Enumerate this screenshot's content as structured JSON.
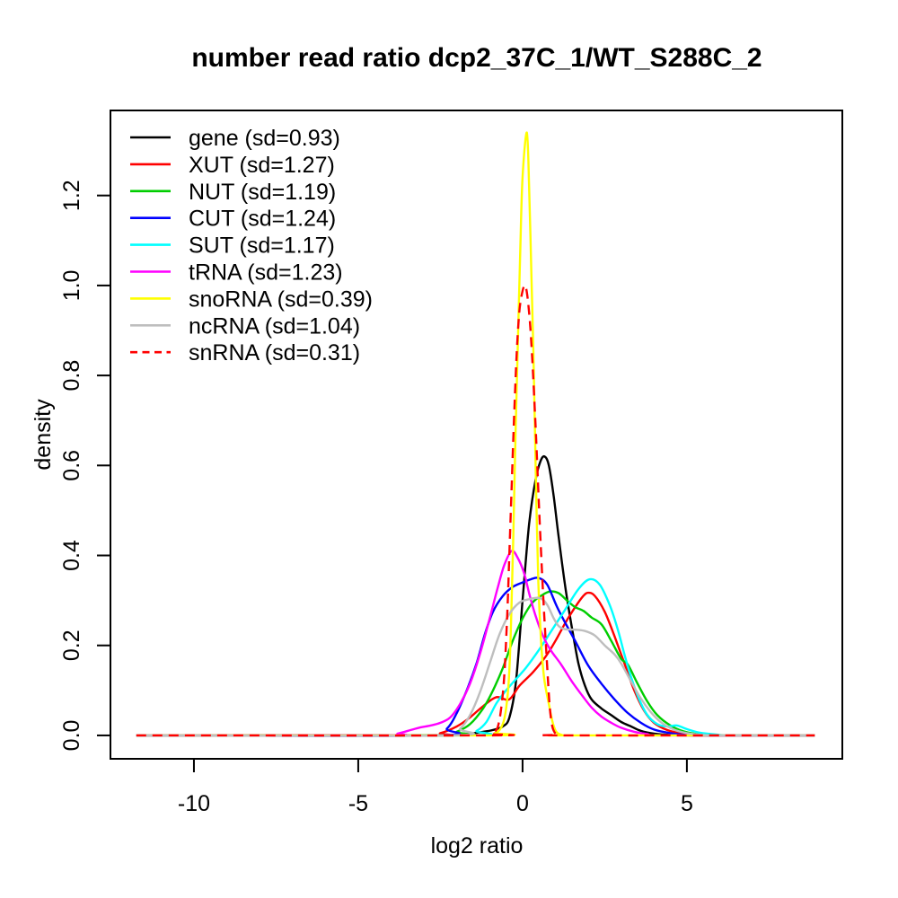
{
  "figure": {
    "title": "number read ratio dcp2_37C_1/WT_S288C_2",
    "xlabel": "log2 ratio",
    "ylabel": "density"
  },
  "chart_data": {
    "type": "line",
    "title": "number read ratio dcp2_37C_1/WT_S288C_2",
    "xlabel": "log2 ratio",
    "ylabel": "density",
    "xlim": [
      -12.54,
      9.73
    ],
    "ylim": [
      -0.052,
      1.389
    ],
    "x_ticks": [
      -10,
      -5,
      0,
      5
    ],
    "x_tick_labels": [
      "-10",
      "-5",
      "0",
      "5"
    ],
    "y_ticks": [
      0,
      0.2,
      0.4,
      0.6,
      0.8,
      1.0,
      1.2
    ],
    "y_tick_labels": [
      "0.0",
      "0.2",
      "0.4",
      "0.6",
      "0.8",
      "1.0",
      "1.2"
    ],
    "grid": false,
    "legend_position": "top-left",
    "series": [
      {
        "name": "gene",
        "label": "gene (sd=0.93)",
        "sd": 0.93,
        "color": "#000000",
        "dash": false,
        "points": [
          [
            -11.75,
            0
          ],
          [
            -2.5,
            0
          ],
          [
            -2,
            0.002
          ],
          [
            -1.6,
            0.004
          ],
          [
            -1.2,
            0.008
          ],
          [
            -0.9,
            0.012
          ],
          [
            -0.6,
            0.02
          ],
          [
            -0.4,
            0.04
          ],
          [
            -0.2,
            0.12
          ],
          [
            0,
            0.3
          ],
          [
            0.2,
            0.47
          ],
          [
            0.4,
            0.57
          ],
          [
            0.55,
            0.61
          ],
          [
            0.67,
            0.62
          ],
          [
            0.8,
            0.6
          ],
          [
            0.95,
            0.53
          ],
          [
            1.1,
            0.44
          ],
          [
            1.3,
            0.33
          ],
          [
            1.5,
            0.24
          ],
          [
            1.7,
            0.16
          ],
          [
            1.9,
            0.11
          ],
          [
            2.1,
            0.08
          ],
          [
            2.4,
            0.06
          ],
          [
            2.7,
            0.045
          ],
          [
            3,
            0.03
          ],
          [
            3.3,
            0.02
          ],
          [
            3.6,
            0.01
          ],
          [
            4,
            0.004
          ],
          [
            4.5,
            0.001
          ],
          [
            5,
            0
          ],
          [
            8.89,
            0
          ]
        ]
      },
      {
        "name": "XUT",
        "label": "XUT (sd=1.27)",
        "sd": 1.27,
        "color": "#ff0000",
        "dash": false,
        "points": [
          [
            -11.75,
            0
          ],
          [
            -3,
            0
          ],
          [
            -2.5,
            0.005
          ],
          [
            -2,
            0.02
          ],
          [
            -1.6,
            0.04
          ],
          [
            -1.2,
            0.065
          ],
          [
            -0.8,
            0.085
          ],
          [
            -0.41,
            0.08
          ],
          [
            -0.1,
            0.11
          ],
          [
            0.31,
            0.14
          ],
          [
            0.7,
            0.175
          ],
          [
            1,
            0.21
          ],
          [
            1.3,
            0.25
          ],
          [
            1.6,
            0.285
          ],
          [
            1.85,
            0.31
          ],
          [
            2,
            0.317
          ],
          [
            2.2,
            0.31
          ],
          [
            2.5,
            0.275
          ],
          [
            2.8,
            0.22
          ],
          [
            3.1,
            0.16
          ],
          [
            3.4,
            0.1
          ],
          [
            3.7,
            0.055
          ],
          [
            4,
            0.028
          ],
          [
            4.4,
            0.012
          ],
          [
            4.8,
            0.005
          ],
          [
            5.3,
            0.001
          ],
          [
            5.8,
            0
          ],
          [
            8.89,
            0
          ]
        ]
      },
      {
        "name": "NUT",
        "label": "NUT (sd=1.19)",
        "sd": 1.19,
        "color": "#00cd00",
        "dash": false,
        "points": [
          [
            -11.75,
            0
          ],
          [
            -2.4,
            0
          ],
          [
            -2,
            0.008
          ],
          [
            -1.6,
            0.025
          ],
          [
            -1.2,
            0.06
          ],
          [
            -0.9,
            0.1
          ],
          [
            -0.6,
            0.15
          ],
          [
            -0.3,
            0.21
          ],
          [
            0,
            0.26
          ],
          [
            0.3,
            0.295
          ],
          [
            0.6,
            0.312
          ],
          [
            0.85,
            0.32
          ],
          [
            1.1,
            0.316
          ],
          [
            1.35,
            0.3
          ],
          [
            1.6,
            0.285
          ],
          [
            1.85,
            0.277
          ],
          [
            2.1,
            0.262
          ],
          [
            2.4,
            0.247
          ],
          [
            2.7,
            0.21
          ],
          [
            3,
            0.17
          ],
          [
            3.2,
            0.158
          ],
          [
            3.5,
            0.115
          ],
          [
            3.8,
            0.075
          ],
          [
            4.1,
            0.045
          ],
          [
            4.5,
            0.022
          ],
          [
            4.9,
            0.009
          ],
          [
            5.4,
            0.002
          ],
          [
            5.9,
            0
          ],
          [
            8.89,
            0
          ]
        ]
      },
      {
        "name": "CUT",
        "label": "CUT (sd=1.24)",
        "sd": 1.24,
        "color": "#0000ff",
        "dash": false,
        "points": [
          [
            -11.75,
            0
          ],
          [
            -2.7,
            0
          ],
          [
            -2.3,
            0.015
          ],
          [
            -2,
            0.05
          ],
          [
            -1.7,
            0.1
          ],
          [
            -1.4,
            0.16
          ],
          [
            -1.15,
            0.224
          ],
          [
            -0.9,
            0.275
          ],
          [
            -0.6,
            0.31
          ],
          [
            -0.3,
            0.33
          ],
          [
            0,
            0.34
          ],
          [
            0.25,
            0.347
          ],
          [
            0.49,
            0.35
          ],
          [
            0.75,
            0.335
          ],
          [
            1.04,
            0.287
          ],
          [
            1.3,
            0.25
          ],
          [
            1.6,
            0.21
          ],
          [
            2,
            0.155
          ],
          [
            2.4,
            0.115
          ],
          [
            2.8,
            0.08
          ],
          [
            3.2,
            0.05
          ],
          [
            3.6,
            0.028
          ],
          [
            4,
            0.013
          ],
          [
            4.5,
            0.005
          ],
          [
            5,
            0.001
          ],
          [
            5.5,
            0
          ],
          [
            8.89,
            0
          ]
        ]
      },
      {
        "name": "SUT",
        "label": "SUT (sd=1.17)",
        "sd": 1.17,
        "color": "#00ffff",
        "dash": false,
        "points": [
          [
            -11.75,
            0
          ],
          [
            -1.8,
            0
          ],
          [
            -1.4,
            0.01
          ],
          [
            -1.1,
            0.03
          ],
          [
            -0.79,
            0.072
          ],
          [
            -0.5,
            0.1
          ],
          [
            -0.2,
            0.125
          ],
          [
            0.1,
            0.15
          ],
          [
            0.5,
            0.19
          ],
          [
            0.9,
            0.235
          ],
          [
            1.3,
            0.28
          ],
          [
            1.7,
            0.325
          ],
          [
            2.04,
            0.347
          ],
          [
            2.35,
            0.335
          ],
          [
            2.65,
            0.29
          ],
          [
            2.9,
            0.235
          ],
          [
            3.1,
            0.18
          ],
          [
            3.3,
            0.13
          ],
          [
            3.55,
            0.08
          ],
          [
            3.8,
            0.045
          ],
          [
            4.1,
            0.025
          ],
          [
            4.4,
            0.02
          ],
          [
            4.7,
            0.022
          ],
          [
            5,
            0.014
          ],
          [
            5.4,
            0.006
          ],
          [
            5.9,
            0.002
          ],
          [
            6.4,
            0
          ],
          [
            8.89,
            0
          ]
        ]
      },
      {
        "name": "tRNA",
        "label": "tRNA (sd=1.23)",
        "sd": 1.23,
        "color": "#ff00ff",
        "dash": false,
        "points": [
          [
            -11.75,
            0
          ],
          [
            -4.2,
            0
          ],
          [
            -3.8,
            0.004
          ],
          [
            -3.4,
            0.012
          ],
          [
            -3.1,
            0.018
          ],
          [
            -2.8,
            0.022
          ],
          [
            -2.5,
            0.028
          ],
          [
            -2.2,
            0.04
          ],
          [
            -1.9,
            0.07
          ],
          [
            -1.6,
            0.115
          ],
          [
            -1.3,
            0.18
          ],
          [
            -1,
            0.26
          ],
          [
            -0.75,
            0.33
          ],
          [
            -0.55,
            0.38
          ],
          [
            -0.33,
            0.41
          ],
          [
            -0.15,
            0.395
          ],
          [
            0.05,
            0.36
          ],
          [
            0.22,
            0.31
          ],
          [
            0.4,
            0.265
          ],
          [
            0.6,
            0.225
          ],
          [
            0.85,
            0.19
          ],
          [
            1.17,
            0.158
          ],
          [
            1.5,
            0.12
          ],
          [
            1.8,
            0.09
          ],
          [
            2.1,
            0.062
          ],
          [
            2.4,
            0.042
          ],
          [
            2.7,
            0.028
          ],
          [
            3,
            0.017
          ],
          [
            3.4,
            0.008
          ],
          [
            3.8,
            0.003
          ],
          [
            4.2,
            0
          ],
          [
            8.89,
            0
          ]
        ]
      },
      {
        "name": "snoRNA",
        "label": "snoRNA (sd=0.39)",
        "sd": 0.39,
        "color": "#ffff00",
        "dash": false,
        "points": [
          [
            -11.75,
            0
          ],
          [
            -1.1,
            0
          ],
          [
            -0.85,
            0.005
          ],
          [
            -0.7,
            0.012
          ],
          [
            -0.58,
            0.03
          ],
          [
            -0.5,
            0.06
          ],
          [
            -0.42,
            0.12
          ],
          [
            -0.35,
            0.25
          ],
          [
            -0.28,
            0.45
          ],
          [
            -0.21,
            0.68
          ],
          [
            -0.14,
            0.88
          ],
          [
            -0.07,
            1.08
          ],
          [
            0,
            1.24
          ],
          [
            0.13,
            1.34
          ],
          [
            0.2,
            1.22
          ],
          [
            0.27,
            1.02
          ],
          [
            0.33,
            0.85
          ],
          [
            0.38,
            0.67
          ],
          [
            0.43,
            0.48
          ],
          [
            0.48,
            0.34
          ],
          [
            0.54,
            0.24
          ],
          [
            0.6,
            0.17
          ],
          [
            0.66,
            0.125
          ],
          [
            0.73,
            0.095
          ],
          [
            0.8,
            0.07
          ],
          [
            0.88,
            0.04
          ],
          [
            0.96,
            0.018
          ],
          [
            1.05,
            0.006
          ],
          [
            1.2,
            0.001
          ],
          [
            1.4,
            0
          ],
          [
            8.89,
            0
          ]
        ]
      },
      {
        "name": "ncRNA",
        "label": "ncRNA (sd=1.04)",
        "sd": 1.04,
        "color": "#bebebe",
        "dash": false,
        "points": [
          [
            -11.75,
            0
          ],
          [
            -2.3,
            0
          ],
          [
            -1.9,
            0.015
          ],
          [
            -1.6,
            0.045
          ],
          [
            -1.3,
            0.095
          ],
          [
            -1,
            0.16
          ],
          [
            -0.7,
            0.225
          ],
          [
            -0.4,
            0.27
          ],
          [
            -0.1,
            0.295
          ],
          [
            0.22,
            0.303
          ],
          [
            0.54,
            0.305
          ],
          [
            0.75,
            0.29
          ],
          [
            0.95,
            0.26
          ],
          [
            1.1,
            0.243
          ],
          [
            1.3,
            0.236
          ],
          [
            1.6,
            0.235
          ],
          [
            1.9,
            0.232
          ],
          [
            2.2,
            0.222
          ],
          [
            2.5,
            0.2
          ],
          [
            2.8,
            0.18
          ],
          [
            3,
            0.16
          ],
          [
            3.3,
            0.12
          ],
          [
            3.6,
            0.082
          ],
          [
            3.9,
            0.052
          ],
          [
            4.2,
            0.03
          ],
          [
            4.6,
            0.013
          ],
          [
            5,
            0.005
          ],
          [
            5.5,
            0.001
          ],
          [
            6,
            0
          ],
          [
            8.89,
            0
          ]
        ]
      },
      {
        "name": "snRNA",
        "label": "snRNA (sd=0.31)",
        "sd": 0.31,
        "color": "#ff0000",
        "dash": true,
        "points": [
          [
            -11.75,
            0
          ],
          [
            -1.1,
            0
          ],
          [
            -0.95,
            0.003
          ],
          [
            -0.85,
            0.008
          ],
          [
            -0.75,
            0.02
          ],
          [
            -0.65,
            0.06
          ],
          [
            -0.55,
            0.14
          ],
          [
            -0.46,
            0.28
          ],
          [
            -0.38,
            0.45
          ],
          [
            -0.3,
            0.62
          ],
          [
            -0.22,
            0.78
          ],
          [
            -0.14,
            0.9
          ],
          [
            -0.06,
            0.965
          ],
          [
            0.08,
            1.0
          ],
          [
            0.2,
            0.94
          ],
          [
            0.3,
            0.83
          ],
          [
            0.4,
            0.68
          ],
          [
            0.5,
            0.51
          ],
          [
            0.6,
            0.35
          ],
          [
            0.68,
            0.24
          ],
          [
            0.76,
            0.14
          ],
          [
            0.82,
            0.07
          ],
          [
            0.88,
            0.03
          ],
          [
            0.95,
            0.01
          ],
          [
            1.05,
            0.002
          ],
          [
            1.2,
            0
          ],
          [
            8.89,
            0
          ]
        ]
      }
    ]
  }
}
